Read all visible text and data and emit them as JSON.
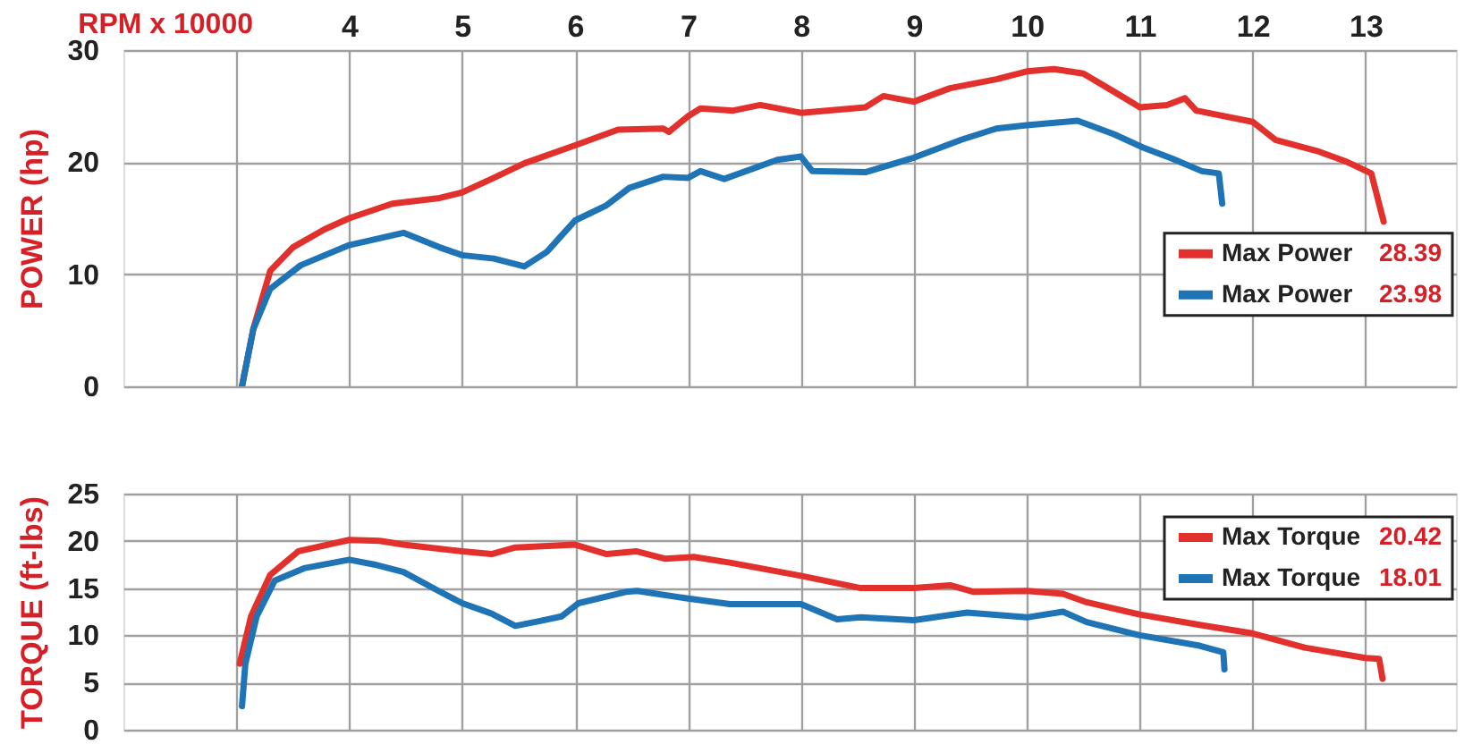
{
  "chart_data": [
    {
      "type": "line",
      "xlabel": "RPM x 10000",
      "ylabel": "POWER (hp)",
      "xlim": [
        2.0,
        13.8
      ],
      "ylim": [
        0,
        30
      ],
      "xticks": [
        {
          "value": 3,
          "label": null
        },
        4,
        5,
        6,
        7,
        8,
        9,
        10,
        11,
        12,
        13
      ],
      "yticks": [
        0,
        10,
        20,
        30
      ],
      "grid": true,
      "legend": "right",
      "series": [
        {
          "name": "Max Power 28.39",
          "color": "#e2312d",
          "x": [
            3.05,
            3.15,
            3.3,
            3.5,
            3.78,
            4.0,
            4.38,
            4.8,
            5.0,
            5.28,
            5.55,
            6.0,
            6.38,
            6.78,
            6.83,
            7.0,
            7.11,
            7.4,
            7.64,
            8.0,
            8.57,
            8.73,
            9.0,
            9.32,
            9.73,
            10.0,
            10.24,
            10.5,
            10.77,
            11.0,
            11.24,
            11.4,
            11.5,
            12.0,
            12.2,
            12.57,
            12.84,
            13.05,
            13.16
          ],
          "values": [
            0,
            5.1,
            10.3,
            12.4,
            14.0,
            15.0,
            16.3,
            16.8,
            17.3,
            18.6,
            19.9,
            21.5,
            22.9,
            23.0,
            22.7,
            24.1,
            24.8,
            24.6,
            25.1,
            24.4,
            24.9,
            25.9,
            25.4,
            26.6,
            27.4,
            28.1,
            28.3,
            27.9,
            26.3,
            24.9,
            25.1,
            25.7,
            24.6,
            23.6,
            22.0,
            21.0,
            20.0,
            19.0,
            14.7
          ]
        },
        {
          "name": "Max Power 23.98",
          "color": "#1f74b6",
          "x": [
            3.05,
            3.15,
            3.3,
            3.57,
            4.0,
            4.48,
            4.8,
            5.0,
            5.28,
            5.55,
            5.75,
            6.0,
            6.27,
            6.48,
            6.78,
            7.0,
            7.11,
            7.32,
            7.79,
            8.0,
            8.1,
            8.57,
            9.0,
            9.42,
            9.73,
            10.0,
            10.45,
            10.77,
            11.03,
            11.29,
            11.55,
            11.7,
            11.73
          ],
          "values": [
            0,
            5.1,
            8.7,
            10.8,
            12.6,
            13.7,
            12.4,
            11.7,
            11.4,
            10.7,
            12.0,
            14.8,
            16.1,
            17.7,
            18.7,
            18.6,
            19.2,
            18.5,
            20.2,
            20.5,
            19.2,
            19.1,
            20.4,
            22.0,
            23.0,
            23.3,
            23.7,
            22.5,
            21.3,
            20.3,
            19.2,
            19.0,
            16.3
          ]
        }
      ]
    },
    {
      "type": "line",
      "ylabel": "TORQUE (ft-lbs)",
      "xlim": [
        2.0,
        13.8
      ],
      "ylim": [
        0,
        25
      ],
      "xticks": [
        3,
        4,
        5,
        6,
        7,
        8,
        9,
        10,
        11,
        12,
        13
      ],
      "yticks": [
        0,
        5,
        10,
        15,
        20,
        25
      ],
      "grid": true,
      "legend": "top right",
      "tick_labels": "y",
      "series": [
        {
          "name": "Max Torque 20.42",
          "color": "#e2312d",
          "x": [
            3.03,
            3.13,
            3.3,
            3.55,
            4.0,
            4.27,
            4.48,
            5.0,
            5.26,
            5.47,
            6.0,
            6.28,
            6.54,
            6.8,
            7.05,
            7.37,
            8.0,
            8.53,
            9.0,
            9.32,
            9.53,
            10.0,
            10.32,
            10.53,
            11.0,
            11.53,
            12.0,
            12.46,
            13.0,
            13.12,
            13.15
          ],
          "values": [
            7.0,
            12.0,
            16.4,
            18.9,
            20.1,
            20.0,
            19.6,
            18.9,
            18.6,
            19.3,
            19.6,
            18.6,
            18.9,
            18.1,
            18.3,
            17.7,
            16.3,
            15.0,
            15.0,
            15.3,
            14.6,
            14.7,
            14.4,
            13.5,
            12.2,
            11.1,
            10.2,
            8.7,
            7.6,
            7.5,
            5.4
          ]
        },
        {
          "name": "Max Torque 18.01",
          "color": "#1f74b6",
          "x": [
            3.05,
            3.08,
            3.18,
            3.34,
            3.6,
            4.0,
            4.22,
            4.48,
            4.79,
            5.0,
            5.26,
            5.47,
            5.68,
            5.88,
            6.03,
            6.45,
            6.55,
            7.0,
            7.37,
            8.0,
            8.32,
            8.53,
            9.0,
            9.47,
            10.0,
            10.32,
            10.53,
            11.0,
            11.53,
            11.74,
            11.75
          ],
          "values": [
            2.5,
            7.0,
            12.0,
            15.8,
            17.1,
            18.0,
            17.5,
            16.7,
            14.7,
            13.4,
            12.3,
            11.0,
            11.5,
            12.0,
            13.4,
            14.6,
            14.7,
            13.9,
            13.3,
            13.3,
            11.7,
            11.9,
            11.6,
            12.4,
            11.9,
            12.5,
            11.4,
            10.0,
            8.9,
            8.2,
            6.4
          ]
        }
      ]
    }
  ]
}
